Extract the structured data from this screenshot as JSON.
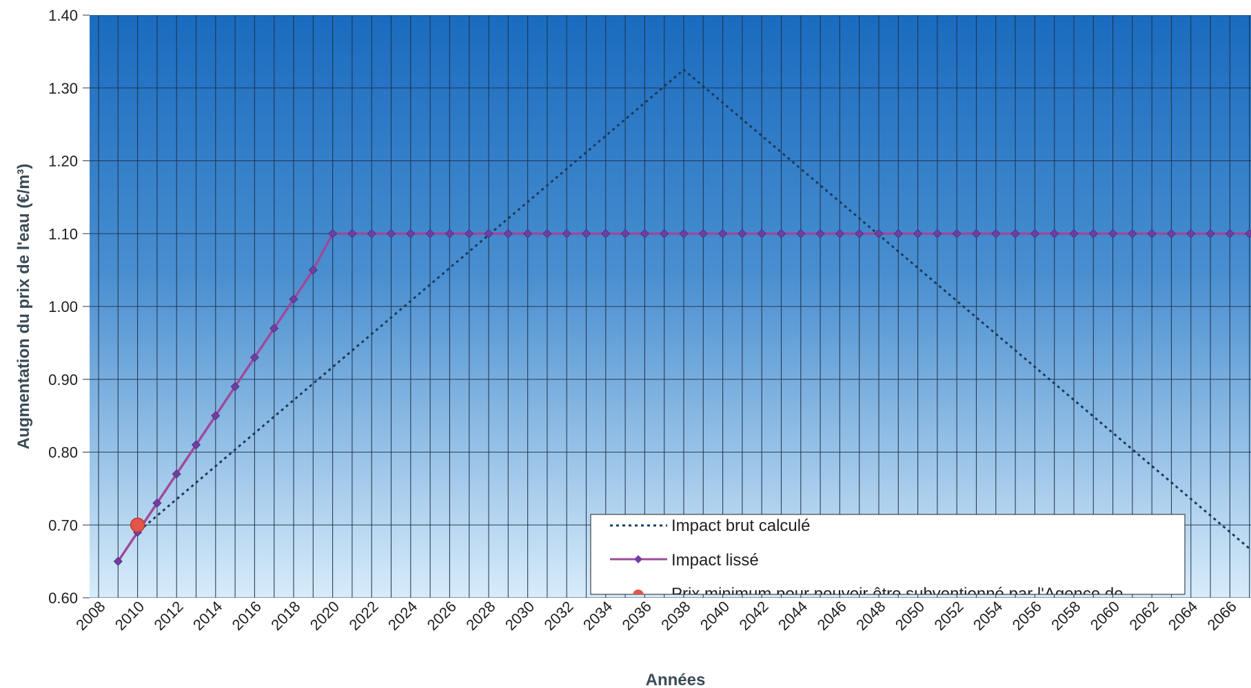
{
  "chart_data": {
    "type": "line",
    "title": "",
    "xlabel": "Années",
    "ylabel": "Augmentation du prix de l'eau (€/m³)",
    "xlim": [
      2008,
      2068
    ],
    "ylim": [
      0.6,
      1.4
    ],
    "y_ticks": [
      "0.60",
      "0.70",
      "0.80",
      "0.90",
      "1.00",
      "1.10",
      "1.20",
      "1.30",
      "1.40"
    ],
    "x_ticks": [
      2008,
      2010,
      2012,
      2014,
      2016,
      2018,
      2020,
      2022,
      2024,
      2026,
      2028,
      2030,
      2032,
      2034,
      2036,
      2038,
      2040,
      2042,
      2044,
      2046,
      2048,
      2050,
      2052,
      2054,
      2056,
      2058,
      2060,
      2062,
      2064,
      2066
    ],
    "grid": true,
    "legend_position": "bottom-right",
    "background_gradient": [
      "#1a6bbf",
      "#d8ecfa"
    ],
    "series": [
      {
        "name": "Impact brut calculé",
        "style": "dotted",
        "color": "#1b3a5c",
        "x": [
          2009,
          2010,
          2038,
          2068
        ],
        "y": [
          0.65,
          0.69,
          1.325,
          0.645
        ]
      },
      {
        "name": "Impact lissé",
        "style": "line-diamond",
        "color": "#a0489a",
        "marker_color": "#6e3fa3",
        "x": [
          2009,
          2010,
          2011,
          2012,
          2013,
          2014,
          2015,
          2016,
          2017,
          2018,
          2019,
          2020,
          2021,
          2022,
          2023,
          2024,
          2025,
          2026,
          2027,
          2028,
          2029,
          2030,
          2031,
          2032,
          2033,
          2034,
          2035,
          2036,
          2037,
          2038,
          2039,
          2040,
          2041,
          2042,
          2043,
          2044,
          2045,
          2046,
          2047,
          2048,
          2049,
          2050,
          2051,
          2052,
          2053,
          2054,
          2055,
          2056,
          2057,
          2058,
          2059,
          2060,
          2061,
          2062,
          2063,
          2064,
          2065,
          2066,
          2067,
          2068
        ],
        "y": [
          0.65,
          0.69,
          0.73,
          0.77,
          0.81,
          0.85,
          0.89,
          0.93,
          0.97,
          1.01,
          1.05,
          1.1,
          1.1,
          1.1,
          1.1,
          1.1,
          1.1,
          1.1,
          1.1,
          1.1,
          1.1,
          1.1,
          1.1,
          1.1,
          1.1,
          1.1,
          1.1,
          1.1,
          1.1,
          1.1,
          1.1,
          1.1,
          1.1,
          1.1,
          1.1,
          1.1,
          1.1,
          1.1,
          1.1,
          1.1,
          1.1,
          1.1,
          1.1,
          1.1,
          1.1,
          1.1,
          1.1,
          1.1,
          1.1,
          1.1,
          1.1,
          1.1,
          1.1,
          1.1,
          1.1,
          1.1,
          1.1,
          1.1,
          1.1,
          1.1
        ]
      },
      {
        "name": "Prix minimum pour pouvoir être subventionné par l'Agence de",
        "style": "point",
        "color": "#e2554a",
        "x": [
          2010
        ],
        "y": [
          0.7
        ]
      }
    ]
  }
}
